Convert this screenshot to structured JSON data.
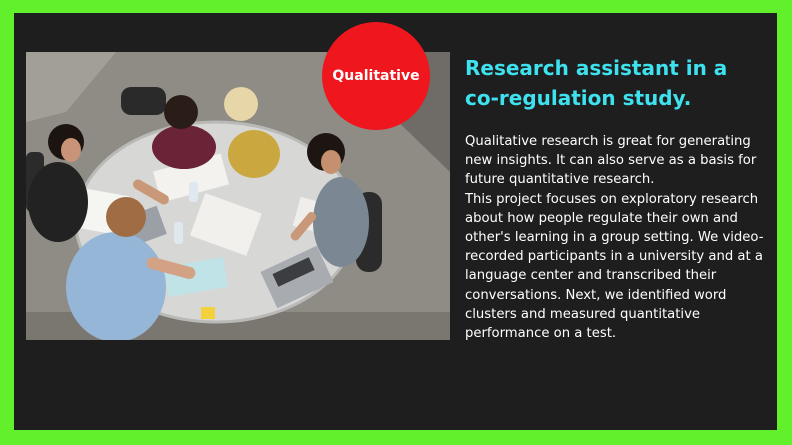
{
  "badge": {
    "label": "Qualitative",
    "color": "#f0161e"
  },
  "card": {
    "title": "Research assistant in a co-regulation study.",
    "paragraphs": [
      "Qualitative research is great for generating new insights. It can also serve as a basis for future quantitative research.",
      "This project focuses on exploratory research about how people regulate their own and other's learning in a group setting. We video-recorded participants in a university and at a language center and transcribed their conversations. Next, we identified word clusters and measured quantitative performance on a test."
    ]
  },
  "colors": {
    "border": "#62ef2c",
    "background": "#1e1e1e",
    "title": "#3ee2ef",
    "text": "#ffffff"
  },
  "image": {
    "subject": "students-studying-around-table-photo"
  }
}
